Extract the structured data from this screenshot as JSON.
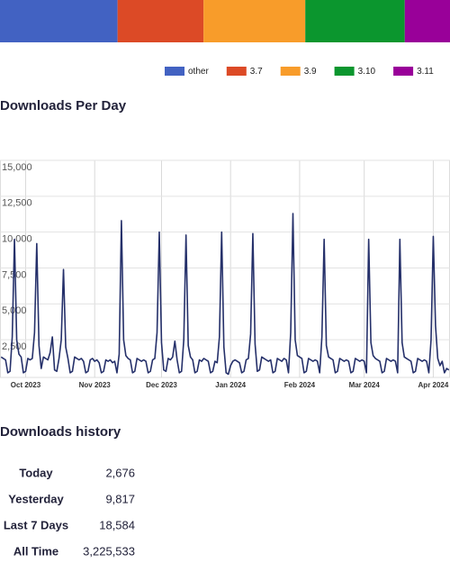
{
  "chart_data": [
    {
      "type": "stacked-bar",
      "series": [
        {
          "name": "other",
          "color": "#4262c2",
          "values": [
            26
          ]
        },
        {
          "name": "3.7",
          "color": "#dc4a26",
          "values": [
            19
          ]
        },
        {
          "name": "3.9",
          "color": "#f89c2a",
          "values": [
            22.5
          ]
        },
        {
          "name": "3.10",
          "color": "#0b962e",
          "values": [
            22
          ]
        },
        {
          "name": "3.11",
          "color": "#990099",
          "values": [
            10
          ]
        }
      ]
    },
    {
      "type": "line",
      "title": "Downloads Per Day",
      "color": "#25306a",
      "grid": true,
      "ylim": [
        0,
        15000
      ],
      "yticks": [
        {
          "value": 2500,
          "label": "2,500"
        },
        {
          "value": 5000,
          "label": "5,000"
        },
        {
          "value": 7500,
          "label": "7,500"
        },
        {
          "value": 10000,
          "label": "10,000"
        },
        {
          "value": 12500,
          "label": "12,500"
        },
        {
          "value": 15000,
          "label": "15,000"
        }
      ],
      "categories": [
        null,
        null,
        null,
        null,
        null,
        null,
        null,
        null,
        null,
        null,
        null,
        "Oct 2023",
        null,
        null,
        null,
        null,
        null,
        null,
        null,
        null,
        null,
        null,
        null,
        null,
        null,
        null,
        null,
        null,
        null,
        null,
        null,
        null,
        null,
        null,
        null,
        null,
        null,
        null,
        null,
        null,
        null,
        null,
        "Nov 2023",
        null,
        null,
        null,
        null,
        null,
        null,
        null,
        null,
        null,
        null,
        null,
        null,
        null,
        null,
        null,
        null,
        null,
        null,
        null,
        null,
        null,
        null,
        null,
        null,
        null,
        null,
        null,
        null,
        null,
        "Dec 2023",
        null,
        null,
        null,
        null,
        null,
        null,
        null,
        null,
        null,
        null,
        null,
        null,
        null,
        null,
        null,
        null,
        null,
        null,
        null,
        null,
        null,
        null,
        null,
        null,
        null,
        null,
        null,
        null,
        null,
        null,
        "Jan 2024",
        null,
        null,
        null,
        null,
        null,
        null,
        null,
        null,
        null,
        null,
        null,
        null,
        null,
        null,
        null,
        null,
        null,
        null,
        null,
        null,
        null,
        null,
        null,
        null,
        null,
        null,
        null,
        null,
        null,
        null,
        "Feb 2024",
        null,
        null,
        null,
        null,
        null,
        null,
        null,
        null,
        null,
        null,
        null,
        null,
        null,
        null,
        null,
        null,
        null,
        null,
        null,
        null,
        null,
        null,
        null,
        null,
        null,
        null,
        null,
        null,
        "Mar 2024",
        null,
        null,
        null,
        null,
        null,
        null,
        null,
        null,
        null,
        null,
        null,
        null,
        null,
        null,
        null,
        null,
        null,
        null,
        null,
        null,
        null,
        null,
        null,
        null,
        null,
        null,
        null,
        null,
        null,
        null,
        "Apr 2024",
        null,
        null,
        null,
        null,
        null,
        null,
        null
      ],
      "values": [
        1800,
        1700,
        1600,
        700,
        800,
        3200,
        10000,
        3000,
        2000,
        1800,
        700,
        800,
        1700,
        1600,
        1700,
        3500,
        9700,
        2600,
        1000,
        1800,
        1700,
        1600,
        2100,
        3200,
        900,
        800,
        1700,
        3000,
        7900,
        2500,
        1700,
        700,
        800,
        1800,
        1700,
        1600,
        1700,
        1500,
        700,
        800,
        1600,
        1700,
        1500,
        1600,
        1400,
        700,
        800,
        1600,
        1500,
        1600,
        1400,
        1500,
        700,
        2000,
        11300,
        3000,
        1900,
        1700,
        1600,
        700,
        800,
        1700,
        1600,
        1500,
        1600,
        1500,
        700,
        800,
        1600,
        1700,
        3500,
        10500,
        2800,
        900,
        800,
        1700,
        1600,
        1800,
        2900,
        1600,
        700,
        800,
        3000,
        10300,
        2600,
        1800,
        1600,
        700,
        800,
        1600,
        1500,
        1700,
        1600,
        1500,
        700,
        800,
        1500,
        1400,
        3200,
        10500,
        2500,
        700,
        600,
        1200,
        1500,
        1600,
        1500,
        1400,
        700,
        800,
        1600,
        1700,
        3400,
        10400,
        2700,
        800,
        900,
        1800,
        1700,
        1600,
        1500,
        1600,
        700,
        800,
        1700,
        1600,
        1500,
        1700,
        1600,
        700,
        3500,
        11800,
        3000,
        1900,
        1800,
        1700,
        700,
        800,
        1700,
        1600,
        1500,
        1600,
        1500,
        700,
        3200,
        10000,
        2600,
        1800,
        1700,
        1600,
        700,
        800,
        1700,
        1600,
        1500,
        1600,
        1500,
        700,
        800,
        1700,
        1600,
        1500,
        1600,
        1500,
        700,
        10000,
        2800,
        1900,
        1700,
        1600,
        1500,
        700,
        800,
        1700,
        1600,
        1500,
        1600,
        1500,
        700,
        10000,
        2800,
        1800,
        1700,
        1600,
        1500,
        700,
        800,
        1700,
        1600,
        1500,
        1600,
        1500,
        700,
        3000,
        10200,
        4000,
        1700,
        1200,
        1500,
        700,
        1000,
        900
      ]
    }
  ],
  "history": {
    "title": "Downloads history",
    "rows": [
      [
        "Today",
        "2,676"
      ],
      [
        "Yesterday",
        "9,817"
      ],
      [
        "Last 7 Days",
        "18,584"
      ],
      [
        "All Time",
        "3,225,533"
      ]
    ]
  }
}
